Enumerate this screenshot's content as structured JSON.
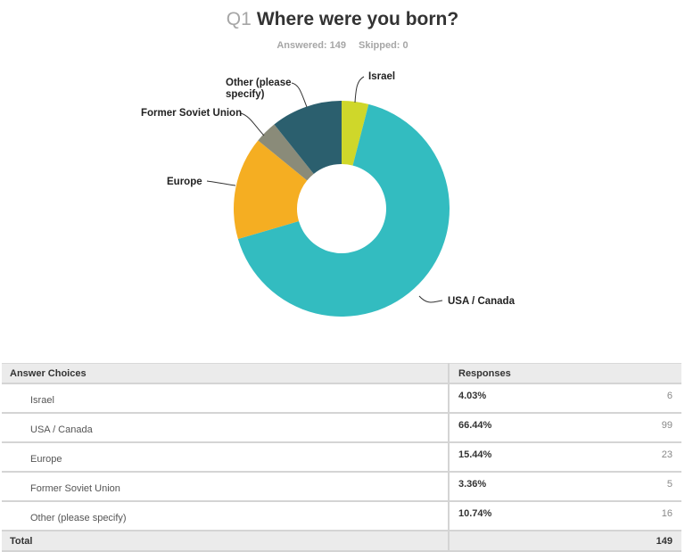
{
  "header": {
    "question_number": "Q1",
    "question_text": "Where were you born?",
    "answered": "Answered: 149",
    "skipped": "Skipped: 0"
  },
  "chart_data": {
    "type": "pie",
    "style": "donut",
    "title": "Q1 Where were you born?",
    "categories": [
      "Israel",
      "USA / Canada",
      "Europe",
      "Former Soviet Union",
      "Other (please specify)"
    ],
    "values": [
      4.03,
      66.44,
      15.44,
      3.36,
      10.74
    ],
    "counts": [
      6,
      99,
      23,
      5,
      16
    ],
    "colors": [
      "#cfd72a",
      "#33bcc0",
      "#f5ae22",
      "#8a8b79",
      "#2b5f6e"
    ],
    "labels": [
      "Israel",
      "USA / Canada",
      "Europe",
      "Former Soviet Union",
      "Other (please specify)"
    ],
    "start_angle": "12 o'clock, clockwise",
    "legend": "none (leader-line labels)"
  },
  "table": {
    "headers": {
      "choices": "Answer Choices",
      "responses": "Responses"
    },
    "rows": [
      {
        "choice": "Israel",
        "percent": "4.03%",
        "count": "6"
      },
      {
        "choice": "USA / Canada",
        "percent": "66.44%",
        "count": "99"
      },
      {
        "choice": "Europe",
        "percent": "15.44%",
        "count": "23"
      },
      {
        "choice": "Former Soviet Union",
        "percent": "3.36%",
        "count": "5"
      },
      {
        "choice": "Other (please specify)",
        "percent": "10.74%",
        "count": "16"
      }
    ],
    "total": {
      "label": "Total",
      "count": "149"
    }
  },
  "chart_labels": {
    "israel": "Israel",
    "usa": "USA / Canada",
    "europe": "Europe",
    "fsu": "Former Soviet Union",
    "other_line1": "Other (please",
    "other_line2": "specify)"
  }
}
